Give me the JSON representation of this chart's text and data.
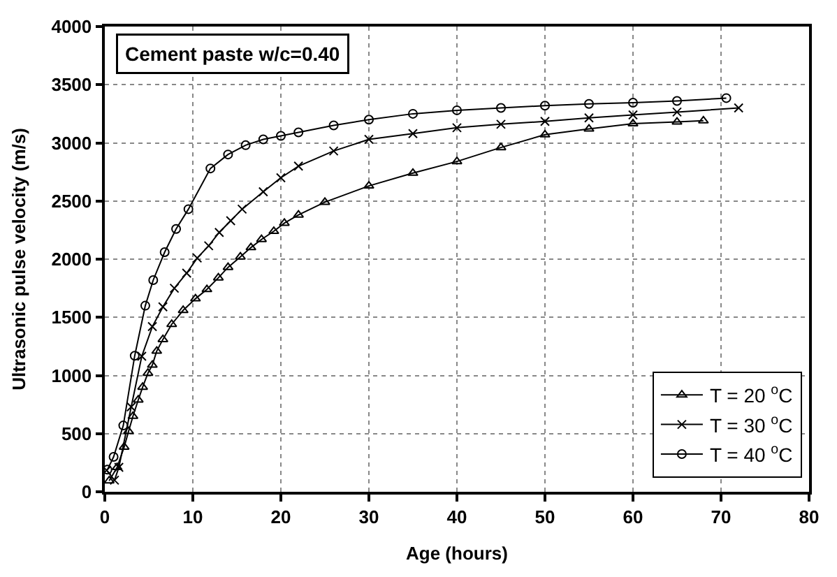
{
  "chart_data": {
    "type": "line",
    "title": "Cement paste w/c=0.40",
    "xlabel": "Age (hours)",
    "ylabel": "Ultrasonic pulse velocity (m/s)",
    "xlim": [
      0,
      80
    ],
    "xticks": [
      0,
      10,
      20,
      30,
      40,
      50,
      60,
      70,
      80
    ],
    "ylim": [
      0,
      4000
    ],
    "yticks": [
      0,
      500,
      1000,
      1500,
      2000,
      2500,
      3000,
      3500,
      4000
    ],
    "grid": true,
    "legend": "bottom right",
    "line_style": "solid",
    "series": [
      {
        "name": "T = 20 $^{o}$C",
        "color": "#000000",
        "marker": "triangle",
        "x": [
          0.5,
          1.4,
          2.2,
          2.7,
          3.2,
          3.8,
          4.3,
          4.9,
          5.4,
          5.9,
          6.6,
          7.6,
          8.9,
          10.3,
          11.6,
          12.9,
          14,
          15.4,
          16.6,
          17.8,
          19.2,
          20.4,
          22,
          25,
          30,
          35,
          40,
          45,
          50,
          55,
          60,
          65,
          68
        ],
        "values": [
          95,
          210,
          385,
          520,
          650,
          790,
          900,
          1020,
          1090,
          1210,
          1310,
          1440,
          1560,
          1660,
          1740,
          1840,
          1930,
          2020,
          2100,
          2170,
          2240,
          2310,
          2380,
          2490,
          2630,
          2740,
          2840,
          2960,
          3070,
          3120,
          3165,
          3180,
          3190
        ]
      },
      {
        "name": "T = 30 $^{o}$C",
        "color": "#000000",
        "marker": "cross",
        "x": [
          0.2,
          1.1,
          1.6,
          3,
          4.2,
          5.4,
          6.6,
          7.9,
          9.3,
          10.5,
          11.8,
          13,
          14.3,
          15.6,
          18,
          20,
          22,
          26,
          30,
          35,
          40,
          45,
          50,
          55,
          60,
          65,
          72
        ],
        "values": [
          185,
          100,
          210,
          730,
          1165,
          1420,
          1590,
          1750,
          1880,
          2010,
          2115,
          2230,
          2330,
          2430,
          2580,
          2700,
          2800,
          2930,
          3030,
          3080,
          3130,
          3160,
          3185,
          3215,
          3240,
          3265,
          3300
        ]
      },
      {
        "name": "T = 40 $^{o}$C",
        "color": "#000000",
        "marker": "circle",
        "x": [
          0.3,
          1,
          2.1,
          3.4,
          4.6,
          5.5,
          6.8,
          8.1,
          9.5,
          12,
          14,
          16,
          18,
          20,
          22,
          26,
          30,
          35,
          40,
          45,
          50,
          55,
          60,
          65,
          70.6
        ],
        "values": [
          190,
          300,
          570,
          1170,
          1600,
          1820,
          2060,
          2260,
          2430,
          2780,
          2900,
          2980,
          3030,
          3060,
          3090,
          3150,
          3200,
          3250,
          3280,
          3300,
          3320,
          3335,
          3345,
          3360,
          3385
        ]
      }
    ]
  }
}
